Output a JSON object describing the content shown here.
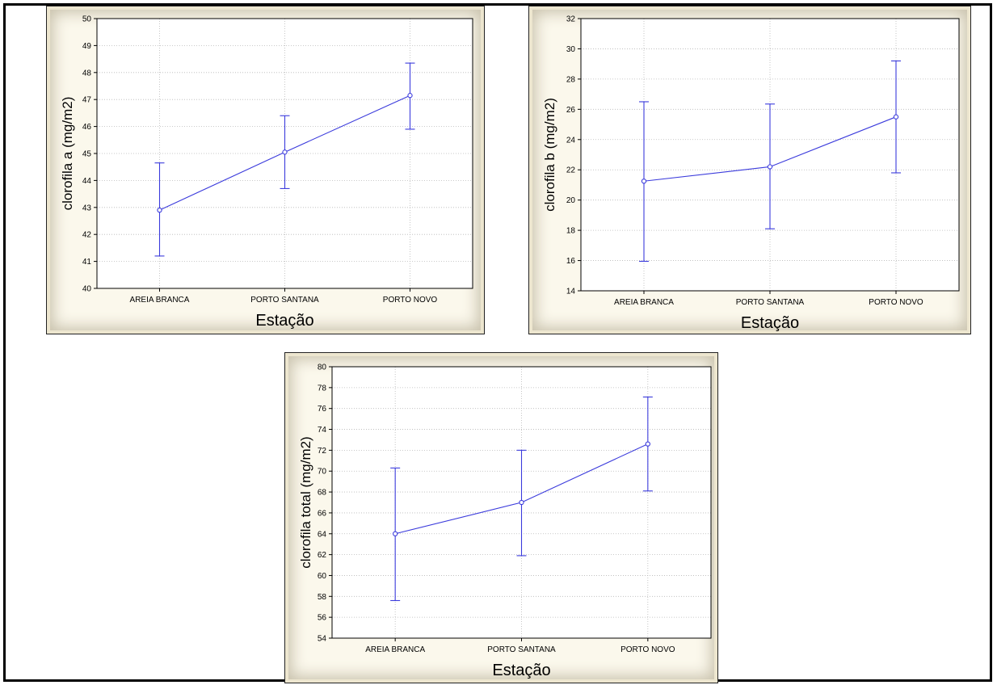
{
  "chart_data": [
    {
      "type": "line",
      "categories": [
        "AREIA BRANCA",
        "PORTO SANTANA",
        "PORTO NOVO"
      ],
      "values": [
        42.9,
        45.05,
        47.15
      ],
      "error_low": [
        41.2,
        43.7,
        45.9
      ],
      "error_high": [
        44.65,
        46.4,
        48.35
      ],
      "xlabel": "Estação",
      "ylabel": "clorofila a (mg/m2)",
      "ylim": [
        40,
        50
      ],
      "yticks": [
        "40",
        "41",
        "42",
        "43",
        "44",
        "45",
        "46",
        "47",
        "48",
        "49",
        "50"
      ],
      "grid": true,
      "colors": {
        "series": "#3b3bdc",
        "grid": "#b8b8b8"
      }
    },
    {
      "type": "line",
      "categories": [
        "AREIA BRANCA",
        "PORTO SANTANA",
        "PORTO NOVO"
      ],
      "values": [
        21.25,
        22.2,
        25.5
      ],
      "error_low": [
        15.95,
        18.1,
        21.8
      ],
      "error_high": [
        26.5,
        26.35,
        29.2
      ],
      "xlabel": "Estação",
      "ylabel": "clorofila b (mg/m2)",
      "ylim": [
        14,
        32
      ],
      "yticks": [
        "14",
        "16",
        "18",
        "20",
        "22",
        "24",
        "26",
        "28",
        "30",
        "32"
      ],
      "grid": true,
      "colors": {
        "series": "#3b3bdc",
        "grid": "#b8b8b8"
      }
    },
    {
      "type": "line",
      "categories": [
        "AREIA BRANCA",
        "PORTO SANTANA",
        "PORTO NOVO"
      ],
      "values": [
        64.0,
        67.0,
        72.6
      ],
      "error_low": [
        57.6,
        61.9,
        68.1
      ],
      "error_high": [
        70.3,
        72.0,
        77.1
      ],
      "xlabel": "Estação",
      "ylabel": "clorofila total (mg/m2)",
      "ylim": [
        54,
        80
      ],
      "yticks": [
        "54",
        "56",
        "58",
        "60",
        "62",
        "64",
        "66",
        "68",
        "70",
        "72",
        "74",
        "76",
        "78",
        "80"
      ],
      "grid": true,
      "colors": {
        "series": "#3b3bdc",
        "grid": "#b8b8b8"
      }
    }
  ]
}
